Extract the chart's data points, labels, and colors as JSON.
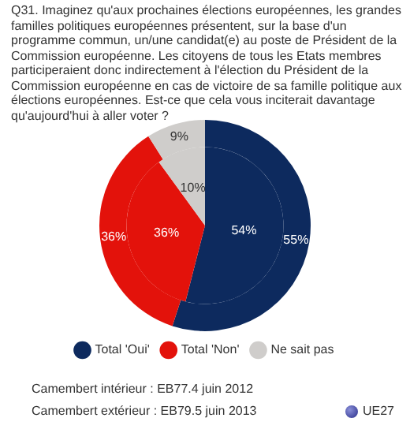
{
  "chart_data": {
    "type": "pie",
    "title": "Q31. Imaginez qu'aux prochaines élections européennes, les grandes familles politiques européennes présentent, sur la base d'un programme commun, un/une candidat(e) au poste de Président de la Commission européenne. Les citoyens de tous les Etats membres participeraient donc indirectement à l'élection du Président de la Commission européenne en cas de victoire de sa famille politique aux élections européennes. Est-ce que cela vous inciterait davantage qu'aujourd'hui à aller voter ?",
    "categories": [
      "Total 'Oui'",
      "Total 'Non'",
      "Ne sait pas"
    ],
    "colors": [
      "#0d2a5e",
      "#e3120b",
      "#cfcdcb"
    ],
    "series": [
      {
        "values": [
          55,
          36,
          9
        ],
        "value_labels": [
          "55%",
          "36%",
          "9%"
        ]
      },
      {
        "values": [
          54,
          36,
          10
        ],
        "value_labels": [
          "54%",
          "36%",
          "10%"
        ]
      }
    ],
    "legend": "bottom",
    "annotations": [
      "Camembert intérieur : EB77.4 juin 2012",
      "Camembert extérieur : EB79.5 juin 2013",
      "UE27"
    ]
  }
}
